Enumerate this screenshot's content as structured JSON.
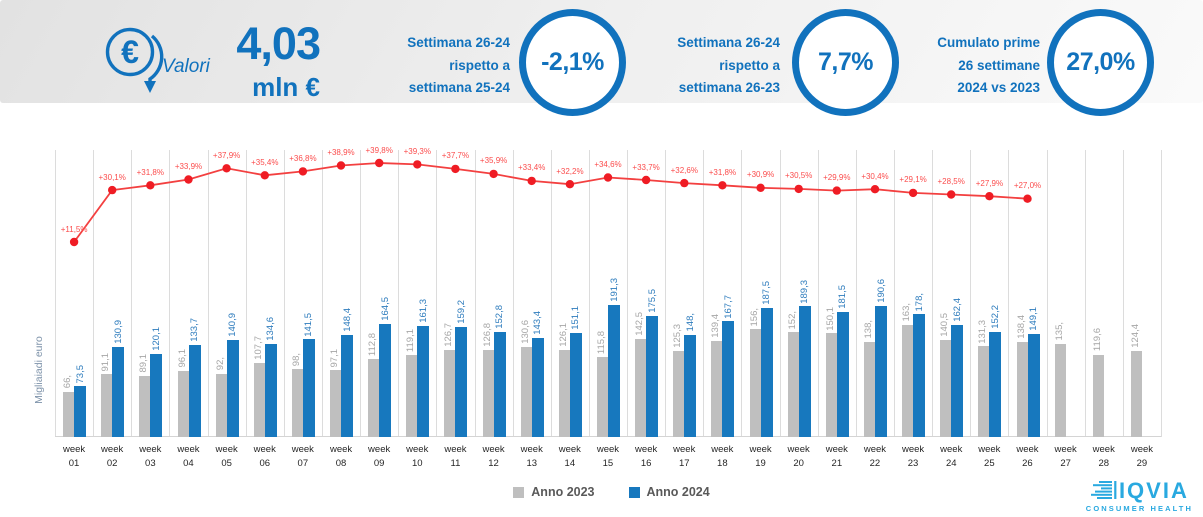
{
  "header": {
    "icon": "euro-circle-arrow-down-icon",
    "caption": "Valori",
    "value": "4,03",
    "unit": "mln €",
    "kpis": [
      {
        "label_lines": [
          "Settimana 26-24",
          "rispetto a",
          "settimana 25-24"
        ],
        "value": "-2,1%"
      },
      {
        "label_lines": [
          "Settimana 26-24",
          "rispetto a",
          "settimana 26-23"
        ],
        "value": "7,7%"
      },
      {
        "label_lines": [
          "Cumulato prime",
          "26 settimane",
          "2024 vs 2023"
        ],
        "value": "27,0%"
      }
    ]
  },
  "chart_data": {
    "type": "bar",
    "subtype": "grouped weekly bars with YoY % variation overlay line",
    "ylabel": "Migliaiadi euro",
    "week_word": "week",
    "weeks": [
      "01",
      "02",
      "03",
      "04",
      "05",
      "06",
      "07",
      "08",
      "09",
      "10",
      "11",
      "12",
      "13",
      "14",
      "15",
      "16",
      "17",
      "18",
      "19",
      "20",
      "21",
      "22",
      "23",
      "24",
      "25",
      "26",
      "27",
      "28",
      "29"
    ],
    "series": [
      {
        "name": "Anno 2023",
        "color": "#bfbfbf",
        "label_color": "#a6a6a6",
        "values": [
          66,
          91.1,
          89.1,
          96.1,
          92,
          107.7,
          98,
          97.1,
          112.8,
          119.1,
          126.7,
          126.8,
          130.6,
          126.1,
          115.8,
          142.5,
          125.3,
          139.4,
          156,
          152,
          150.1,
          138,
          163,
          140.5,
          131.3,
          138.4,
          135,
          119.6,
          124.4
        ],
        "labels": [
          "66,",
          "91,1",
          "89,1",
          "96,1",
          "92,",
          "107,7",
          "98,",
          "97,1",
          "112,8",
          "119,1",
          "126,7",
          "126,8",
          "130,6",
          "126,1",
          "115,8",
          "142,5",
          "125,3",
          "139,4",
          "156,",
          "152,",
          "150,1",
          "138,",
          "163,",
          "140,5",
          "131,3",
          "138,4",
          "135,",
          "119,6",
          "124,4"
        ]
      },
      {
        "name": "Anno 2024",
        "color": "#1778be",
        "label_color": "#2e7cbd",
        "values": [
          73.5,
          130.9,
          120.1,
          133.7,
          140.9,
          134.6,
          141.5,
          148.4,
          164.5,
          161.3,
          159.2,
          152.8,
          143.4,
          151.1,
          191.3,
          175.5,
          148,
          167.7,
          187.5,
          189.3,
          181.5,
          190.6,
          178,
          162.4,
          152.2,
          149.1
        ],
        "labels": [
          "73,5",
          "130,9",
          "120,1",
          "133,7",
          "140,9",
          "134,6",
          "141,5",
          "148,4",
          "164,5",
          "161,3",
          "159,2",
          "152,8",
          "143,4",
          "151,1",
          "191,3",
          "175,5",
          "148,",
          "167,7",
          "187,5",
          "189,3",
          "181,5",
          "190,6",
          "178,",
          "162,4",
          "152,2",
          "149,1"
        ]
      }
    ],
    "line_pct": {
      "color": "#f34040",
      "dot_color": "#ef1c24",
      "label_color": "#fb4d4d",
      "values": [
        11.5,
        30.1,
        31.8,
        33.9,
        37.9,
        35.4,
        36.8,
        38.9,
        39.8,
        39.3,
        37.7,
        35.9,
        33.4,
        32.2,
        34.6,
        33.7,
        32.6,
        31.8,
        30.9,
        30.5,
        29.9,
        30.4,
        29.1,
        28.5,
        27.9,
        27.0
      ],
      "labels": [
        "+11,5%",
        "+30,1%",
        "+31,8%",
        "+33,9%",
        "+37,9%",
        "+35,4%",
        "+36,8%",
        "+38,9%",
        "+39,8%",
        "+39,3%",
        "+37,7%",
        "+35,9%",
        "+33,4%",
        "+32,2%",
        "+34,6%",
        "+33,7%",
        "+32,6%",
        "+31,8%",
        "+30,9%",
        "+30,5%",
        "+29,9%",
        "+30,4%",
        "+29,1%",
        "+28,5%",
        "+27,9%",
        "+27,0%"
      ]
    },
    "legend": [
      "Anno 2023",
      "Anno 2024"
    ],
    "axis": {
      "y_min": 0,
      "grid": "vertical"
    }
  },
  "footer": {
    "logo_text": "IQVIA",
    "logo_sub": "CONSUMER HEALTH"
  },
  "colors": {
    "accent_blue": "#1172bd",
    "bar_2023": "#bfbfbf",
    "bar_2024": "#1778be",
    "line_red": "#f34040",
    "grid": "#dcdcdc",
    "logo_blue": "#29a9e0"
  }
}
